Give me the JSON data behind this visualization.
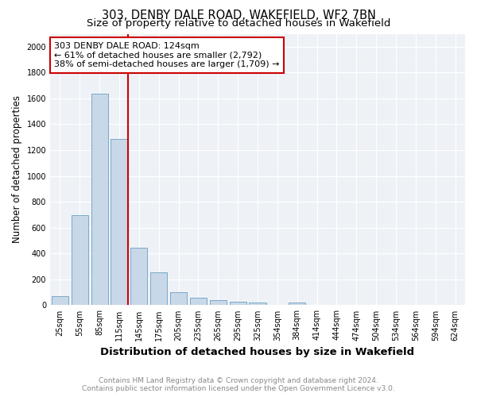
{
  "title": "303, DENBY DALE ROAD, WAKEFIELD, WF2 7BN",
  "subtitle": "Size of property relative to detached houses in Wakefield",
  "xlabel": "Distribution of detached houses by size in Wakefield",
  "ylabel": "Number of detached properties",
  "categories": [
    "25sqm",
    "55sqm",
    "85sqm",
    "115sqm",
    "145sqm",
    "175sqm",
    "205sqm",
    "235sqm",
    "265sqm",
    "295sqm",
    "325sqm",
    "354sqm",
    "384sqm",
    "414sqm",
    "444sqm",
    "474sqm",
    "504sqm",
    "534sqm",
    "564sqm",
    "594sqm",
    "624sqm"
  ],
  "values": [
    68,
    695,
    1635,
    1285,
    445,
    255,
    98,
    55,
    38,
    28,
    18,
    0,
    22,
    0,
    0,
    0,
    0,
    0,
    0,
    0,
    0
  ],
  "bar_color": "#c8d8e8",
  "bar_edge_color": "#7aa8c8",
  "vline_color": "#cc0000",
  "vline_index": 3,
  "annotation_line1": "303 DENBY DALE ROAD: 124sqm",
  "annotation_line2": "← 61% of detached houses are smaller (2,792)",
  "annotation_line3": "38% of semi-detached houses are larger (1,709) →",
  "annotation_box_edge": "#cc0000",
  "ylim": [
    0,
    2100
  ],
  "yticks": [
    0,
    200,
    400,
    600,
    800,
    1000,
    1200,
    1400,
    1600,
    1800,
    2000
  ],
  "fig_bg": "#ffffff",
  "ax_bg": "#eef2f7",
  "grid_color": "#ffffff",
  "footer_line1": "Contains HM Land Registry data © Crown copyright and database right 2024.",
  "footer_line2": "Contains public sector information licensed under the Open Government Licence v3.0.",
  "title_fontsize": 10.5,
  "subtitle_fontsize": 9.5,
  "xlabel_fontsize": 9.5,
  "ylabel_fontsize": 8.5,
  "tick_fontsize": 7,
  "footer_fontsize": 6.5,
  "annotation_fontsize": 8
}
